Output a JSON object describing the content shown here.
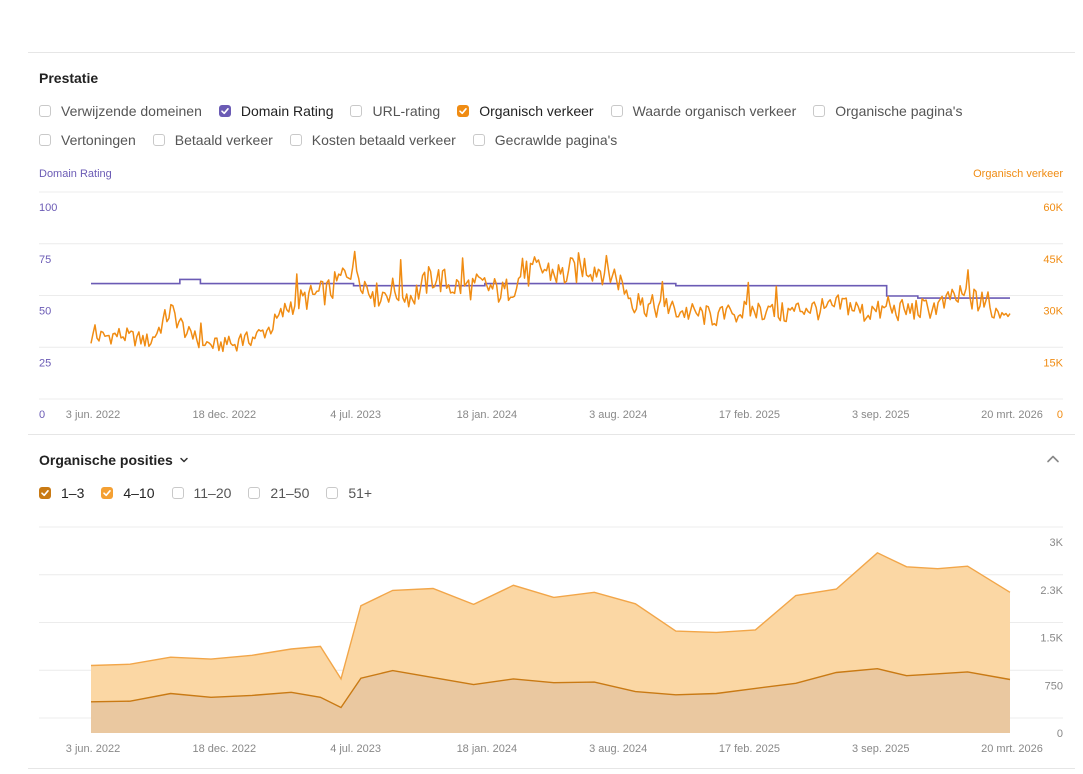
{
  "prestatie": {
    "title": "Prestatie",
    "row1": [
      {
        "label": "Verwijzende domeinen",
        "checked": false
      },
      {
        "label": "Domain Rating",
        "checked": true,
        "color": "#6b5bb5"
      },
      {
        "label": "URL-rating",
        "checked": false
      },
      {
        "label": "Organisch verkeer",
        "checked": true,
        "color": "#f08c13"
      },
      {
        "label": "Waarde organisch verkeer",
        "checked": false
      },
      {
        "label": "Organische pagina's",
        "checked": false
      }
    ],
    "row2": [
      {
        "label": "Vertoningen",
        "checked": false
      },
      {
        "label": "Betaald verkeer",
        "checked": false
      },
      {
        "label": "Kosten betaald verkeer",
        "checked": false
      },
      {
        "label": "Gecrawlde pagina's",
        "checked": false
      }
    ],
    "left_axis_title": "Domain Rating",
    "right_axis_title": "Organisch verkeer"
  },
  "posities": {
    "title": "Organische posities",
    "chevron_icon": "chevron-down-icon",
    "collapse_icon": "chevron-up-icon",
    "filters": [
      {
        "label": "1–3",
        "checked": true,
        "color": "#c97a14"
      },
      {
        "label": "4–10",
        "checked": true,
        "color": "#f4a033"
      },
      {
        "label": "11–20",
        "checked": false
      },
      {
        "label": "21–50",
        "checked": false
      },
      {
        "label": "51+",
        "checked": false
      }
    ]
  },
  "colors": {
    "dr": "#6b5bb5",
    "traffic": "#f08c13",
    "top3_line": "#c97a14",
    "top3_fill": "#eac8a0",
    "top10_line": "#f2a649",
    "top10_fill": "#fbd7a4",
    "grid": "#ececec",
    "tick": "#888888"
  },
  "chart_data": [
    {
      "type": "line",
      "x_tick_labels": [
        "3 jun. 2022",
        "18 dec. 2022",
        "4 jul. 2023",
        "18 jan. 2024",
        "3 aug. 2024",
        "17 feb. 2025",
        "3 sep. 2025",
        "20 mrt. 2026"
      ],
      "x_range": [
        "2022-06-03",
        "2026-03-20"
      ],
      "left_axis": {
        "label": "Domain Rating",
        "range": [
          0,
          100
        ],
        "ticks": [
          "0",
          "25",
          "50",
          "75",
          "100"
        ]
      },
      "right_axis": {
        "label": "Organisch verkeer",
        "range": [
          0,
          60000
        ],
        "ticks": [
          "0",
          "15K",
          "30K",
          "45K",
          "60K"
        ]
      },
      "grid": true,
      "series": [
        {
          "name": "Domain Rating",
          "axis": "left",
          "color": "#6b5bb5",
          "x": [
            "2022-06-03",
            "2022-09-01",
            "2022-10-15",
            "2022-11-15",
            "2023-01-01",
            "2023-03-01",
            "2023-05-01",
            "2023-07-04",
            "2023-10-01",
            "2024-01-18",
            "2024-04-15",
            "2024-08-03",
            "2024-11-01",
            "2025-02-17",
            "2025-05-15",
            "2025-07-01",
            "2025-08-15",
            "2025-09-15",
            "2025-11-01",
            "2026-01-01",
            "2026-03-20"
          ],
          "y": [
            63,
            63,
            65,
            63,
            63,
            63,
            63,
            62,
            62,
            63,
            63,
            63,
            62,
            62,
            62,
            62,
            62,
            57,
            56,
            56,
            56
          ]
        },
        {
          "name": "Organisch verkeer",
          "axis": "right",
          "color": "#f08c13",
          "x": [
            "2022-06-03",
            "2022-07-15",
            "2022-09-01",
            "2022-10-01",
            "2022-11-01",
            "2022-12-01",
            "2023-01-01",
            "2023-02-01",
            "2023-03-01",
            "2023-04-01",
            "2023-05-01",
            "2023-06-01",
            "2023-07-04",
            "2023-08-01",
            "2023-09-01",
            "2023-10-01",
            "2023-11-01",
            "2023-12-01",
            "2024-01-18",
            "2024-02-15",
            "2024-03-15",
            "2024-04-15",
            "2024-05-15",
            "2024-06-15",
            "2024-07-15",
            "2024-08-03",
            "2024-09-01",
            "2024-10-01",
            "2024-11-01",
            "2024-12-01",
            "2025-01-01",
            "2025-02-17",
            "2025-03-15",
            "2025-04-15",
            "2025-05-15",
            "2025-06-15",
            "2025-07-15",
            "2025-08-15",
            "2025-09-15",
            "2025-10-15",
            "2025-11-15",
            "2025-12-15",
            "2026-01-15",
            "2026-02-15",
            "2026-03-20"
          ],
          "y": [
            22000,
            23000,
            21000,
            30000,
            22000,
            20000,
            20000,
            22000,
            25000,
            32000,
            34000,
            36000,
            44000,
            34000,
            36000,
            34000,
            40000,
            37000,
            37000,
            35000,
            40000,
            42000,
            40000,
            43000,
            42000,
            40000,
            32000,
            31000,
            30000,
            29000,
            28000,
            30000,
            30000,
            29000,
            31000,
            30000,
            32000,
            29000,
            30000,
            30000,
            30500,
            32000,
            34500,
            30000,
            30000
          ]
        }
      ]
    },
    {
      "type": "area",
      "title": "Organische posities",
      "x_tick_labels": [
        "3 jun. 2022",
        "18 dec. 2022",
        "4 jul. 2023",
        "18 jan. 2024",
        "3 aug. 2024",
        "17 feb. 2025",
        "3 sep. 2025",
        "20 mrt. 2026"
      ],
      "x_range": [
        "2022-06-03",
        "2026-03-20"
      ],
      "y_axis": {
        "range": [
          0,
          3000
        ],
        "ticks": [
          "0",
          "750",
          "1.5K",
          "2.3K",
          "3K"
        ],
        "position": "right"
      },
      "grid": true,
      "stacked": true,
      "series": [
        {
          "name": "1–3",
          "color": "#c97a14",
          "x": [
            "2022-06-03",
            "2022-08-01",
            "2022-10-01",
            "2022-12-01",
            "2023-02-01",
            "2023-04-01",
            "2023-05-15",
            "2023-06-15",
            "2023-07-15",
            "2023-09-01",
            "2023-11-01",
            "2024-01-01",
            "2024-03-01",
            "2024-05-01",
            "2024-07-01",
            "2024-09-01",
            "2024-11-01",
            "2025-01-01",
            "2025-03-01",
            "2025-05-01",
            "2025-07-01",
            "2025-09-01",
            "2025-10-15",
            "2025-12-01",
            "2026-01-15",
            "2026-03-20"
          ],
          "y": [
            490,
            500,
            620,
            560,
            590,
            640,
            560,
            400,
            860,
            980,
            870,
            760,
            850,
            790,
            800,
            650,
            600,
            620,
            700,
            780,
            950,
            1010,
            900,
            930,
            960,
            840
          ]
        },
        {
          "name": "4–10",
          "color": "#f4a033",
          "x": [
            "2022-06-03",
            "2022-08-01",
            "2022-10-01",
            "2022-12-01",
            "2023-02-01",
            "2023-04-01",
            "2023-05-15",
            "2023-06-15",
            "2023-07-15",
            "2023-09-01",
            "2023-11-01",
            "2024-01-01",
            "2024-03-01",
            "2024-05-01",
            "2024-07-01",
            "2024-09-01",
            "2024-11-01",
            "2025-01-01",
            "2025-03-01",
            "2025-05-01",
            "2025-07-01",
            "2025-09-01",
            "2025-10-15",
            "2025-12-01",
            "2026-01-15",
            "2026-03-20"
          ],
          "y": [
            570,
            580,
            570,
            600,
            630,
            680,
            800,
            450,
            1140,
            1260,
            1400,
            1260,
            1470,
            1340,
            1410,
            1380,
            1000,
            960,
            920,
            1380,
            1310,
            1820,
            1710,
            1650,
            1660,
            1370
          ]
        }
      ]
    }
  ]
}
